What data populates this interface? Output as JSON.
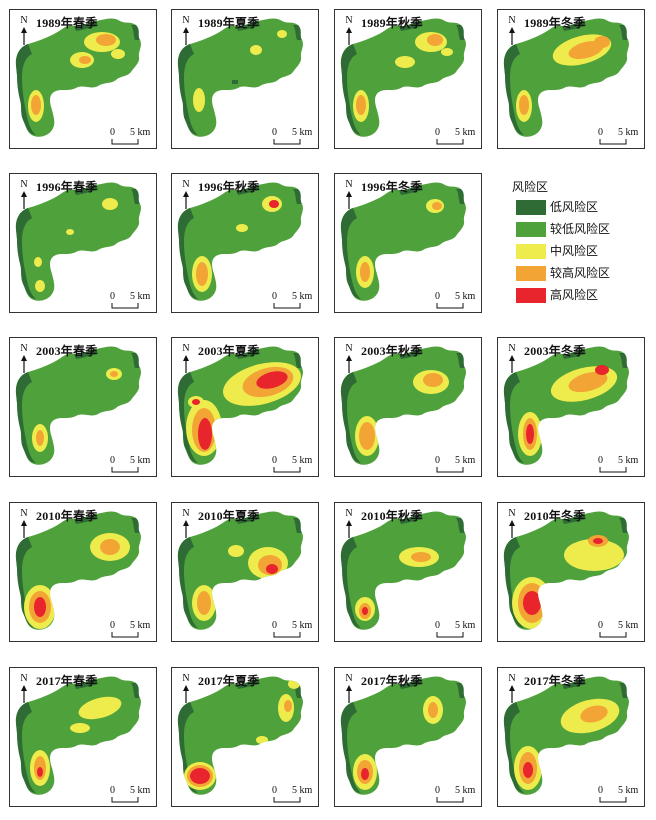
{
  "legend": {
    "title": "风险区",
    "items": [
      {
        "label": "低风险区",
        "color": "#2f6b34"
      },
      {
        "label": "较低风险区",
        "color": "#4fa13b"
      },
      {
        "label": "中风险区",
        "color": "#eeec4d"
      },
      {
        "label": "较高风险区",
        "color": "#f2a535"
      },
      {
        "label": "高风险区",
        "color": "#e8242c"
      }
    ]
  },
  "north_label": "N",
  "scale": {
    "zero": "0",
    "five": "5 km"
  },
  "panels": [
    {
      "title": "1989年春季"
    },
    {
      "title": "1989年夏季"
    },
    {
      "title": "1989年秋季"
    },
    {
      "title": "1989年冬季"
    },
    {
      "title": "1996年春季"
    },
    {
      "title": "1996年秋季"
    },
    {
      "title": "1996年冬季"
    },
    {
      "title": "2003年春季"
    },
    {
      "title": "2003年夏季"
    },
    {
      "title": "2003年秋季"
    },
    {
      "title": "2003年冬季"
    },
    {
      "title": "2010年春季"
    },
    {
      "title": "2010年夏季"
    },
    {
      "title": "2010年秋季"
    },
    {
      "title": "2010年冬季"
    },
    {
      "title": "2017年春季"
    },
    {
      "title": "2017年夏季"
    },
    {
      "title": "2017年秋季"
    },
    {
      "title": "2017年冬季"
    }
  ]
}
